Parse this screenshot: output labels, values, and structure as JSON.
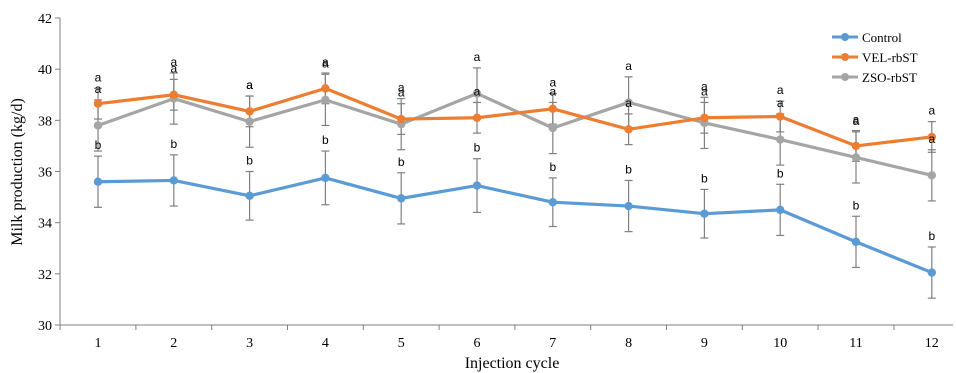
{
  "chart_data": {
    "type": "line",
    "title": "",
    "xlabel": "Injection cycle",
    "ylabel": "Milk production (kg/d)",
    "ylim": [
      30,
      42
    ],
    "yticks": [
      30,
      32,
      34,
      36,
      38,
      40,
      42
    ],
    "x": [
      1,
      2,
      3,
      4,
      5,
      6,
      7,
      8,
      9,
      10,
      11,
      12
    ],
    "grid": false,
    "legend_position": "top-right",
    "series": [
      {
        "name": "Control",
        "color": "#5b9bd5",
        "values": [
          35.6,
          35.65,
          35.05,
          35.75,
          34.95,
          35.45,
          34.8,
          34.65,
          34.35,
          34.5,
          33.25,
          32.05
        ],
        "error": [
          1.0,
          1.0,
          0.95,
          1.05,
          1.0,
          1.05,
          0.95,
          1.0,
          0.95,
          1.0,
          1.0,
          1.0
        ],
        "letters": [
          "b",
          "b",
          "b",
          "b",
          "b",
          "b",
          "b",
          "b",
          "b",
          "b",
          "b",
          "b"
        ]
      },
      {
        "name": "VEL-rbST",
        "color": "#ed7d31",
        "values": [
          38.65,
          39.0,
          38.35,
          39.25,
          38.05,
          38.1,
          38.45,
          37.65,
          38.1,
          38.15,
          37.0,
          37.35
        ],
        "error": [
          0.6,
          0.6,
          0.6,
          0.6,
          0.6,
          0.6,
          0.6,
          0.6,
          0.6,
          0.6,
          0.6,
          0.6
        ],
        "letters": [
          "a",
          "a",
          "a",
          "a",
          "a",
          "a",
          "a",
          "a",
          "a",
          "a",
          "a",
          "a"
        ]
      },
      {
        "name": "ZSO-rbST",
        "color": "#a5a5a5",
        "values": [
          37.8,
          38.85,
          37.95,
          38.8,
          37.85,
          39.05,
          37.7,
          38.7,
          37.9,
          37.25,
          36.55,
          35.85
        ],
        "error": [
          1.0,
          1.0,
          1.0,
          1.0,
          1.0,
          1.0,
          1.0,
          1.0,
          1.0,
          1.0,
          1.0,
          1.0
        ],
        "letters": [
          "a",
          "a",
          "a",
          "a",
          "a",
          "a",
          "a",
          "a",
          "a",
          "a",
          "a",
          "a"
        ]
      }
    ]
  }
}
